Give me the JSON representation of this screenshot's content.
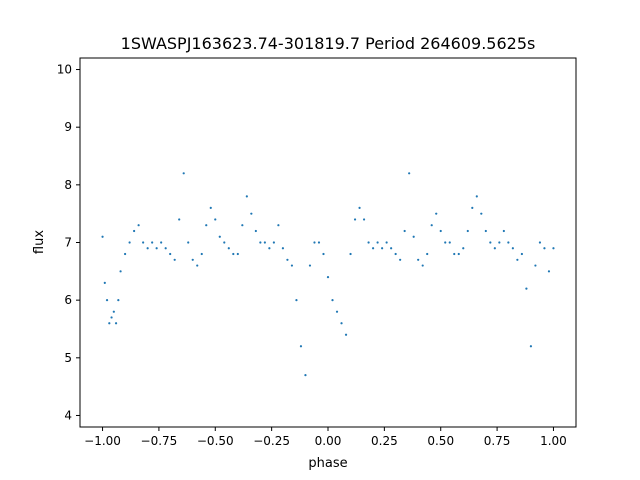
{
  "chart_data": {
    "type": "scatter",
    "title": "1SWASPJ163623.74-301819.7 Period 264609.5625s",
    "xlabel": "phase",
    "ylabel": "flux",
    "xlim": [
      -1.1,
      1.1
    ],
    "ylim": [
      3.8,
      10.2
    ],
    "xticks": [
      -1.0,
      -0.75,
      -0.5,
      -0.25,
      0.0,
      0.25,
      0.5,
      0.75,
      1.0
    ],
    "xtick_labels": [
      "−1.00",
      "−0.75",
      "−0.50",
      "−0.25",
      "0.00",
      "0.25",
      "0.50",
      "0.75",
      "1.00"
    ],
    "yticks": [
      4,
      5,
      6,
      7,
      8,
      9,
      10
    ],
    "ytick_labels": [
      "4",
      "5",
      "6",
      "7",
      "8",
      "9",
      "10"
    ],
    "grid": false,
    "marker_color": "#1f77b4",
    "series": [
      {
        "marker": "point",
        "x": [
          -1.0,
          -0.99,
          -0.98,
          -0.97,
          -0.96,
          -0.95,
          -0.94,
          -0.93,
          -0.92,
          -0.9,
          -0.88,
          -0.86,
          -0.84,
          -0.82,
          -0.8,
          -0.78,
          -0.76,
          -0.74,
          -0.72,
          -0.7,
          -0.68,
          -0.66,
          -0.64,
          -0.62,
          -0.6,
          -0.58,
          -0.56,
          -0.54,
          -0.52,
          -0.5,
          -0.48,
          -0.46,
          -0.44,
          -0.42,
          -0.4,
          -0.38,
          -0.36,
          -0.34,
          -0.32,
          -0.3,
          -0.28,
          -0.26,
          -0.24,
          -0.22,
          -0.2,
          -0.18,
          -0.16,
          -0.14,
          -0.12,
          -0.1,
          -0.08,
          -0.06,
          -0.04,
          -0.02,
          0.0,
          0.02,
          0.04,
          0.06,
          0.08,
          0.1,
          0.12,
          0.14,
          0.16,
          0.18,
          0.2,
          0.22,
          0.24,
          0.26,
          0.28,
          0.3,
          0.32,
          0.34,
          0.36,
          0.38,
          0.4,
          0.42,
          0.44,
          0.46,
          0.48,
          0.5,
          0.52,
          0.54,
          0.56,
          0.58,
          0.6,
          0.62,
          0.64,
          0.66,
          0.68,
          0.7,
          0.72,
          0.74,
          0.76,
          0.78,
          0.8,
          0.82,
          0.84,
          0.86,
          0.88,
          0.9,
          0.92,
          0.94,
          0.96,
          0.98,
          1.0
        ],
        "y": [
          7.1,
          6.3,
          6.0,
          5.6,
          5.7,
          5.8,
          5.6,
          6.0,
          6.5,
          6.8,
          7.0,
          7.2,
          7.3,
          7.0,
          6.9,
          7.0,
          6.9,
          7.0,
          6.9,
          6.8,
          6.7,
          7.4,
          8.2,
          7.0,
          6.7,
          6.6,
          6.8,
          7.3,
          7.6,
          7.4,
          7.1,
          7.0,
          6.9,
          6.8,
          6.8,
          7.3,
          7.8,
          7.5,
          7.2,
          7.0,
          7.0,
          6.9,
          7.0,
          7.3,
          6.9,
          6.7,
          6.6,
          6.0,
          5.2,
          4.7,
          6.6,
          7.0,
          7.0,
          6.8,
          6.4,
          6.0,
          5.8,
          5.6,
          5.4,
          6.8,
          7.4,
          7.6,
          7.4,
          7.0,
          6.9,
          7.0,
          6.9,
          7.0,
          6.9,
          6.8,
          6.7,
          7.2,
          8.2,
          7.1,
          6.7,
          6.6,
          6.8,
          7.3,
          7.5,
          7.2,
          7.0,
          7.0,
          6.8,
          6.8,
          6.9,
          7.2,
          7.6,
          7.8,
          7.5,
          7.2,
          7.0,
          6.9,
          7.0,
          7.2,
          7.0,
          6.9,
          6.7,
          6.8,
          6.2,
          5.2,
          6.6,
          7.0,
          6.9,
          6.5,
          6.9
        ]
      }
    ]
  }
}
